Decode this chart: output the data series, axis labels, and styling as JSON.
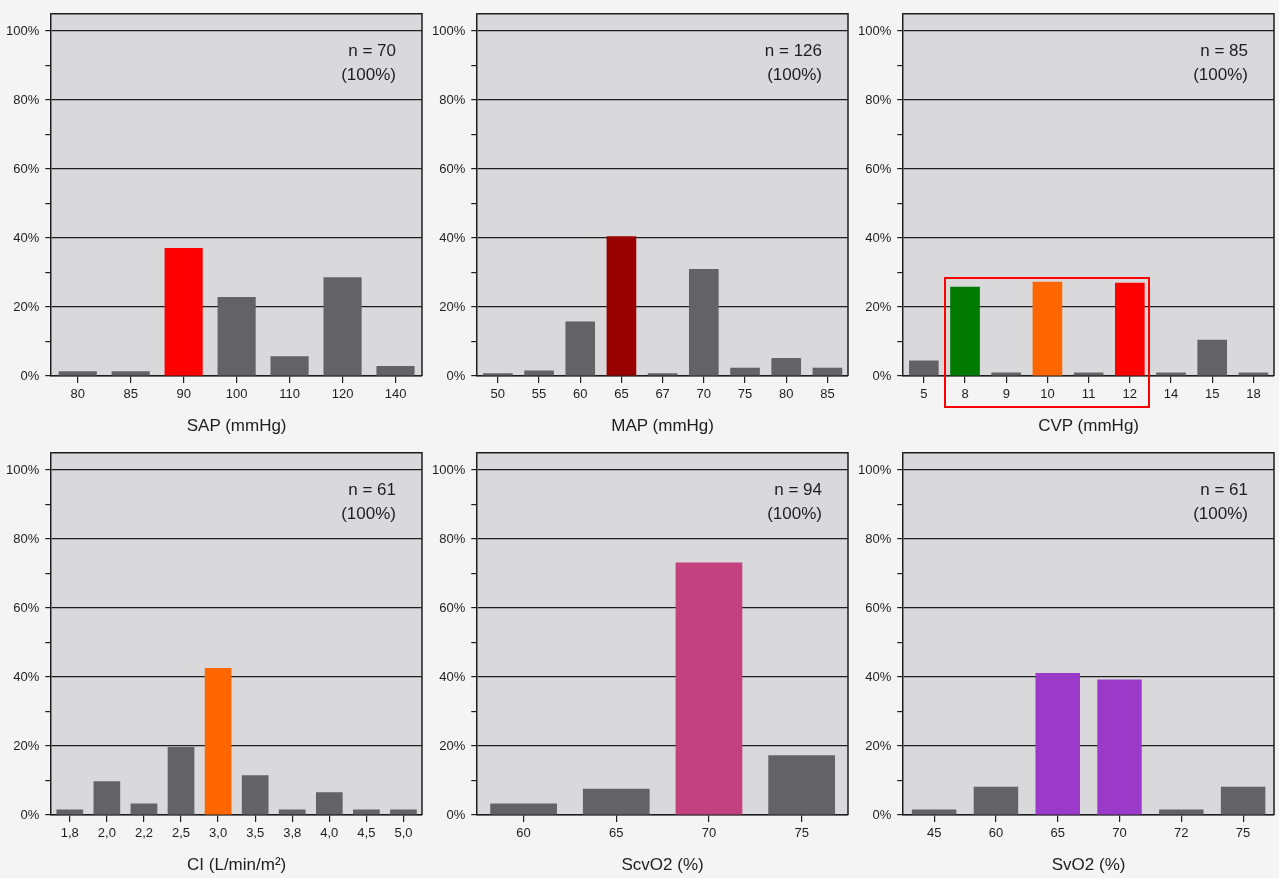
{
  "chart_data": [
    {
      "type": "bar",
      "categories": [
        "80",
        "85",
        "90",
        "100",
        "110",
        "120",
        "140"
      ],
      "values": [
        1.4,
        1.4,
        37.1,
        22.9,
        5.7,
        28.6,
        2.9
      ],
      "colors": [
        "#636366",
        "#636366",
        "#ff0000",
        "#636366",
        "#636366",
        "#636366",
        "#636366"
      ],
      "xlabel": "SAP (mmHg)",
      "ylim": [
        0,
        105
      ],
      "yticks": [
        {
          "value": 0,
          "label": "0%"
        },
        {
          "value": 10,
          "label": null
        },
        {
          "value": 20,
          "label": "20%"
        },
        {
          "value": 30,
          "label": null
        },
        {
          "value": 40,
          "label": "40%"
        },
        {
          "value": 50,
          "label": null
        },
        {
          "value": 60,
          "label": "60%"
        },
        {
          "value": 70,
          "label": null
        },
        {
          "value": 80,
          "label": "80%"
        },
        {
          "value": 90,
          "label": null
        },
        {
          "value": 100,
          "label": "100%"
        }
      ],
      "grid": "y",
      "annotations": [
        "n = 70",
        "(100%)"
      ]
    },
    {
      "type": "bar",
      "categories": [
        "50",
        "55",
        "60",
        "65",
        "67",
        "70",
        "75",
        "80",
        "85"
      ],
      "values": [
        0.8,
        1.6,
        15.8,
        40.5,
        0.8,
        31.0,
        2.4,
        5.2,
        2.4
      ],
      "colors": [
        "#636366",
        "#636366",
        "#636366",
        "#990000",
        "#636366",
        "#636366",
        "#636366",
        "#636366",
        "#636366"
      ],
      "xlabel": "MAP (mmHg)",
      "ylim": [
        0,
        105
      ],
      "yticks": [
        {
          "value": 0,
          "label": "0%"
        },
        {
          "value": 10,
          "label": null
        },
        {
          "value": 20,
          "label": "20%"
        },
        {
          "value": 30,
          "label": null
        },
        {
          "value": 40,
          "label": "40%"
        },
        {
          "value": 50,
          "label": null
        },
        {
          "value": 60,
          "label": "60%"
        },
        {
          "value": 70,
          "label": null
        },
        {
          "value": 80,
          "label": "80%"
        },
        {
          "value": 90,
          "label": null
        },
        {
          "value": 100,
          "label": "100%"
        }
      ],
      "grid": "y",
      "annotations": [
        "n = 126",
        "(100%)"
      ]
    },
    {
      "type": "bar",
      "categories": [
        "5",
        "8",
        "9",
        "10",
        "11",
        "12",
        "14",
        "15",
        "18"
      ],
      "values": [
        4.5,
        25.9,
        1.0,
        27.3,
        1.0,
        27.0,
        1.0,
        10.5,
        1.0
      ],
      "colors": [
        "#636366",
        "#007a00",
        "#636366",
        "#ff6600",
        "#636366",
        "#ff0000",
        "#636366",
        "#636366",
        "#636366"
      ],
      "xlabel": "CVP (mmHg)",
      "ylim": [
        0,
        105
      ],
      "yticks": [
        {
          "value": 0,
          "label": "0%"
        },
        {
          "value": 10,
          "label": null
        },
        {
          "value": 20,
          "label": "20%"
        },
        {
          "value": 30,
          "label": null
        },
        {
          "value": 40,
          "label": "40%"
        },
        {
          "value": 50,
          "label": null
        },
        {
          "value": 60,
          "label": "60%"
        },
        {
          "value": 70,
          "label": null
        },
        {
          "value": 80,
          "label": "80%"
        },
        {
          "value": 90,
          "label": null
        },
        {
          "value": 100,
          "label": "100%"
        }
      ],
      "grid": "y",
      "annotations": [
        "n = 85",
        "(100%)"
      ]
    },
    {
      "type": "bar",
      "categories": [
        "1,8",
        "2,0",
        "2,2",
        "2,5",
        "3,0",
        "3,5",
        "3,8",
        "4,0",
        "4,5",
        "5,0"
      ],
      "values": [
        1.6,
        9.8,
        3.3,
        19.7,
        42.6,
        11.5,
        1.6,
        6.6,
        1.6,
        1.6
      ],
      "colors": [
        "#636366",
        "#636366",
        "#636366",
        "#636366",
        "#ff6600",
        "#636366",
        "#636366",
        "#636366",
        "#636366",
        "#636366"
      ],
      "xlabel": "CI (L/min/m²)",
      "ylim": [
        0,
        105
      ],
      "yticks": [
        {
          "value": 0,
          "label": "0%"
        },
        {
          "value": 10,
          "label": null
        },
        {
          "value": 20,
          "label": "20%"
        },
        {
          "value": 30,
          "label": null
        },
        {
          "value": 40,
          "label": "40%"
        },
        {
          "value": 50,
          "label": null
        },
        {
          "value": 60,
          "label": "60%"
        },
        {
          "value": 70,
          "label": null
        },
        {
          "value": 80,
          "label": "80%"
        },
        {
          "value": 90,
          "label": null
        },
        {
          "value": 100,
          "label": "100%"
        }
      ],
      "grid": "y",
      "annotations": [
        "n = 61",
        "(100%)"
      ]
    },
    {
      "type": "bar",
      "categories": [
        "60",
        "65",
        "70",
        "75"
      ],
      "values": [
        3.3,
        7.6,
        73.2,
        17.3
      ],
      "colors": [
        "#636366",
        "#636366",
        "#c4417f",
        "#636366"
      ],
      "xlabel": "ScvO2 (%)",
      "ylim": [
        0,
        105
      ],
      "yticks": [
        {
          "value": 0,
          "label": "0%"
        },
        {
          "value": 10,
          "label": null
        },
        {
          "value": 20,
          "label": "20%"
        },
        {
          "value": 30,
          "label": null
        },
        {
          "value": 40,
          "label": "40%"
        },
        {
          "value": 50,
          "label": null
        },
        {
          "value": 60,
          "label": "60%"
        },
        {
          "value": 70,
          "label": null
        },
        {
          "value": 80,
          "label": "80%"
        },
        {
          "value": 90,
          "label": null
        },
        {
          "value": 100,
          "label": "100%"
        }
      ],
      "grid": "y",
      "annotations": [
        "n = 94",
        "(100%)"
      ]
    },
    {
      "type": "bar",
      "categories": [
        "45",
        "60",
        "65",
        "70",
        "72",
        "75"
      ],
      "values": [
        1.6,
        8.2,
        41.2,
        39.3,
        1.6,
        8.2
      ],
      "colors": [
        "#636366",
        "#636366",
        "#9b3ac8",
        "#9b3ac8",
        "#636366",
        "#636366"
      ],
      "xlabel": "SvO2 (%)",
      "ylim": [
        0,
        105
      ],
      "yticks": [
        {
          "value": 0,
          "label": "0%"
        },
        {
          "value": 10,
          "label": null
        },
        {
          "value": 20,
          "label": "20%"
        },
        {
          "value": 30,
          "label": null
        },
        {
          "value": 40,
          "label": "40%"
        },
        {
          "value": 50,
          "label": null
        },
        {
          "value": 60,
          "label": "60%"
        },
        {
          "value": 70,
          "label": null
        },
        {
          "value": 80,
          "label": "80%"
        },
        {
          "value": 90,
          "label": null
        },
        {
          "value": 100,
          "label": "100%"
        }
      ],
      "grid": "y",
      "annotations": [
        "n = 61",
        "(100%)"
      ]
    }
  ]
}
